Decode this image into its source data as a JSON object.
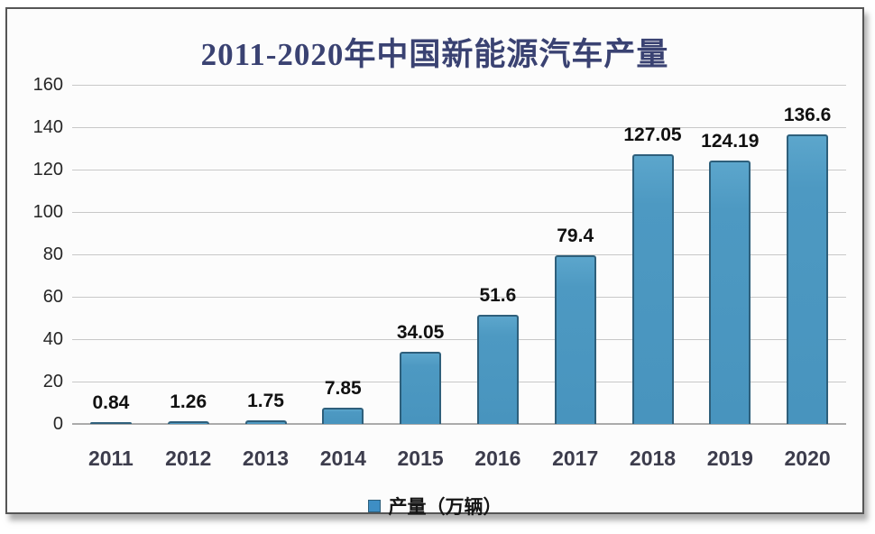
{
  "title": "2011-2020年中国新能源汽车产量",
  "legend": {
    "label": "产量（万辆）",
    "position": "bottom"
  },
  "colors": {
    "bar_fill": "#4d99c2",
    "bar_border": "#2e5f7b",
    "legend_swatch": "#3e8ec4",
    "title_color": "#3a4272",
    "gridline": "#c8c8c8",
    "axis_baseline": "#ababab"
  },
  "chart_data": {
    "type": "bar",
    "title": "2011-2020年中国新能源汽车产量",
    "categories": [
      "2011",
      "2012",
      "2013",
      "2014",
      "2015",
      "2016",
      "2017",
      "2018",
      "2019",
      "2020"
    ],
    "values": [
      0.84,
      1.26,
      1.75,
      7.85,
      34.05,
      51.6,
      79.4,
      127.05,
      124.19,
      136.6
    ],
    "data_labels": [
      "0.84",
      "1.26",
      "1.75",
      "7.85",
      "34.05",
      "51.6",
      "79.4",
      "127.05",
      "124.19",
      "136.6"
    ],
    "series_name": "产量（万辆）",
    "xlabel": "",
    "ylabel": "",
    "ylim": [
      0,
      160
    ],
    "ytick_step": 20,
    "yticks": [
      0,
      20,
      40,
      60,
      80,
      100,
      120,
      140,
      160
    ],
    "grid": true,
    "legend_position": "bottom"
  }
}
